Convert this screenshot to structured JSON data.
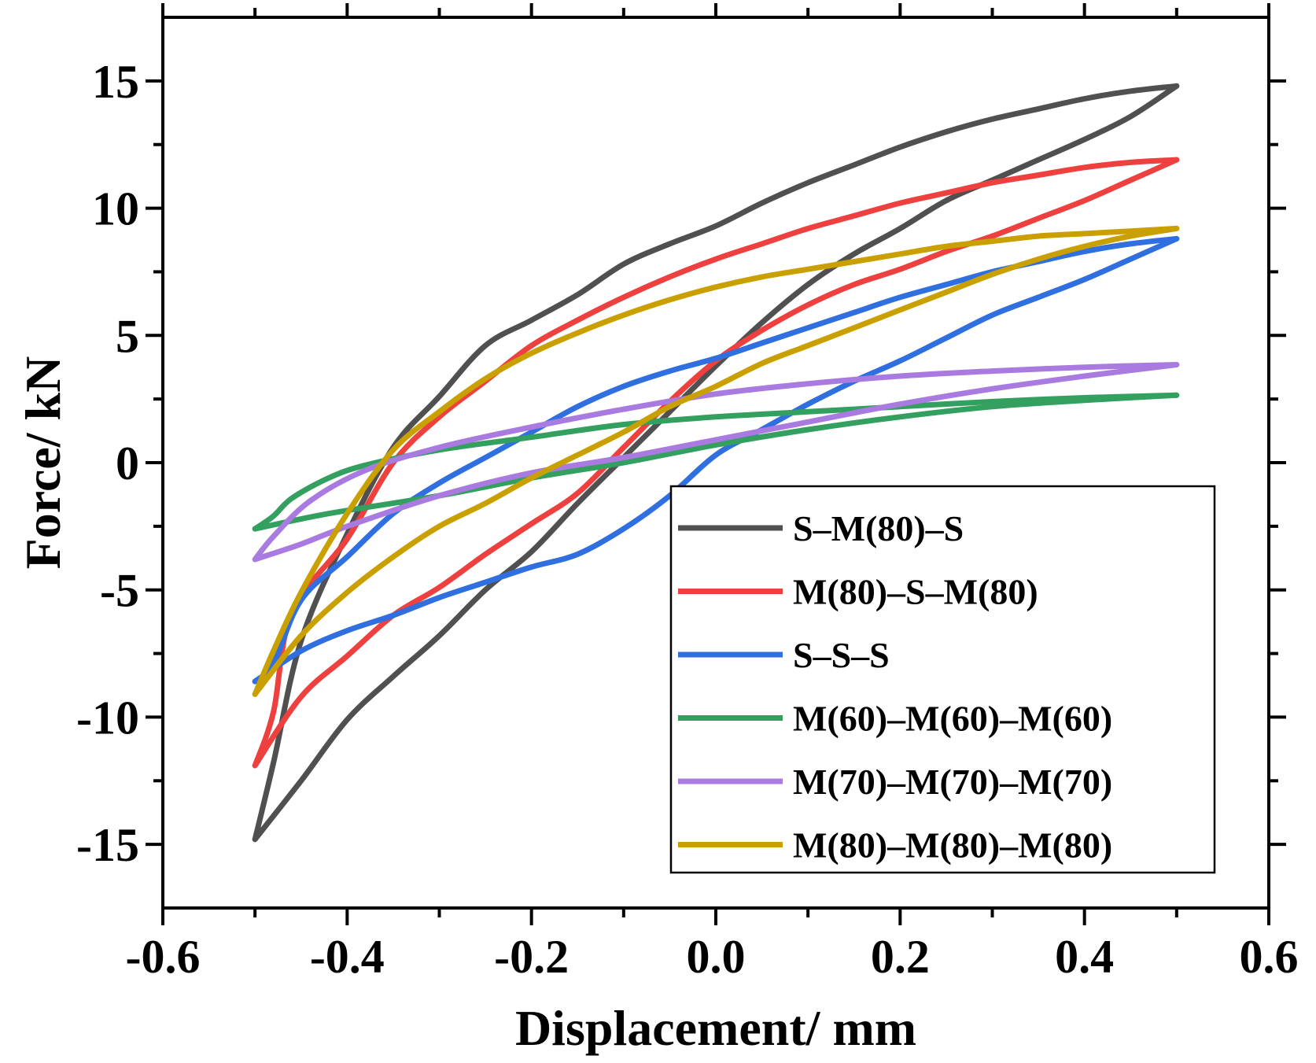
{
  "chart_data": {
    "type": "line",
    "title": "",
    "xlabel": "Displacement/ mm",
    "ylabel": "Force/ kN",
    "xlim": [
      -0.6,
      0.6
    ],
    "ylim": [
      -17.5,
      17.5
    ],
    "x_ticks": [
      -0.6,
      -0.4,
      -0.2,
      0.0,
      0.2,
      0.4,
      0.6
    ],
    "x_tick_labels": [
      "-0.6",
      "-0.4",
      "-0.2",
      "0.0",
      "0.2",
      "0.4",
      "0.6"
    ],
    "y_ticks": [
      15,
      10,
      5,
      0,
      -5,
      -10,
      -15
    ],
    "y_tick_labels": [
      "15",
      "10",
      "5",
      "0",
      "-5",
      "-10",
      "-15"
    ],
    "legend_position": "bottom-right",
    "series": [
      {
        "name": "S–M(80)–S",
        "color": "#505050",
        "upper": [
          [
            -0.5,
            -14.8
          ],
          [
            -0.48,
            -11.8
          ],
          [
            -0.45,
            -7.0
          ],
          [
            -0.4,
            -2.8
          ],
          [
            -0.35,
            0.6
          ],
          [
            -0.3,
            2.6
          ],
          [
            -0.25,
            4.6
          ],
          [
            -0.2,
            5.6
          ],
          [
            -0.15,
            6.6
          ],
          [
            -0.1,
            7.8
          ],
          [
            -0.05,
            8.6
          ],
          [
            0.0,
            9.3
          ],
          [
            0.05,
            10.2
          ],
          [
            0.1,
            11.0
          ],
          [
            0.15,
            11.7
          ],
          [
            0.2,
            12.4
          ],
          [
            0.25,
            13.0
          ],
          [
            0.3,
            13.5
          ],
          [
            0.35,
            13.9
          ],
          [
            0.4,
            14.3
          ],
          [
            0.45,
            14.6
          ],
          [
            0.5,
            14.8
          ]
        ],
        "lower": [
          [
            -0.5,
            -14.8
          ],
          [
            -0.45,
            -12.5
          ],
          [
            -0.4,
            -10.1
          ],
          [
            -0.35,
            -8.4
          ],
          [
            -0.3,
            -6.8
          ],
          [
            -0.25,
            -5.0
          ],
          [
            -0.2,
            -3.5
          ],
          [
            -0.15,
            -1.6
          ],
          [
            -0.1,
            0.2
          ],
          [
            -0.05,
            2.0
          ],
          [
            0.0,
            3.8
          ],
          [
            0.05,
            5.5
          ],
          [
            0.1,
            7.0
          ],
          [
            0.15,
            8.2
          ],
          [
            0.2,
            9.2
          ],
          [
            0.25,
            10.3
          ],
          [
            0.3,
            11.1
          ],
          [
            0.35,
            11.9
          ],
          [
            0.4,
            12.7
          ],
          [
            0.45,
            13.6
          ],
          [
            0.5,
            14.8
          ]
        ]
      },
      {
        "name": "M(80)–S–M(80)",
        "color": "#EF4040",
        "upper": [
          [
            -0.5,
            -11.9
          ],
          [
            -0.48,
            -9.8
          ],
          [
            -0.46,
            -5.9
          ],
          [
            -0.4,
            -3.0
          ],
          [
            -0.35,
            0.0
          ],
          [
            -0.3,
            1.8
          ],
          [
            -0.25,
            3.2
          ],
          [
            -0.2,
            4.6
          ],
          [
            -0.15,
            5.6
          ],
          [
            -0.1,
            6.5
          ],
          [
            -0.05,
            7.3
          ],
          [
            0.0,
            8.0
          ],
          [
            0.05,
            8.6
          ],
          [
            0.1,
            9.2
          ],
          [
            0.15,
            9.7
          ],
          [
            0.2,
            10.2
          ],
          [
            0.25,
            10.6
          ],
          [
            0.3,
            11.0
          ],
          [
            0.35,
            11.3
          ],
          [
            0.4,
            11.6
          ],
          [
            0.45,
            11.8
          ],
          [
            0.5,
            11.9
          ]
        ],
        "lower": [
          [
            -0.5,
            -11.9
          ],
          [
            -0.45,
            -9.2
          ],
          [
            -0.4,
            -7.6
          ],
          [
            -0.35,
            -6.0
          ],
          [
            -0.3,
            -4.9
          ],
          [
            -0.25,
            -3.6
          ],
          [
            -0.2,
            -2.4
          ],
          [
            -0.15,
            -1.2
          ],
          [
            -0.1,
            0.6
          ],
          [
            -0.05,
            2.4
          ],
          [
            0.0,
            4.0
          ],
          [
            0.05,
            5.2
          ],
          [
            0.1,
            6.2
          ],
          [
            0.15,
            7.0
          ],
          [
            0.2,
            7.6
          ],
          [
            0.25,
            8.3
          ],
          [
            0.3,
            8.9
          ],
          [
            0.35,
            9.6
          ],
          [
            0.4,
            10.3
          ],
          [
            0.45,
            11.1
          ],
          [
            0.5,
            11.9
          ]
        ]
      },
      {
        "name": "S–S–S",
        "color": "#2F6FE0",
        "upper": [
          [
            -0.5,
            -8.6
          ],
          [
            -0.48,
            -7.9
          ],
          [
            -0.45,
            -5.4
          ],
          [
            -0.4,
            -3.7
          ],
          [
            -0.35,
            -2.0
          ],
          [
            -0.3,
            -0.8
          ],
          [
            -0.25,
            0.2
          ],
          [
            -0.2,
            1.2
          ],
          [
            -0.15,
            2.2
          ],
          [
            -0.1,
            3.0
          ],
          [
            -0.05,
            3.6
          ],
          [
            0.0,
            4.1
          ],
          [
            0.05,
            4.7
          ],
          [
            0.1,
            5.3
          ],
          [
            0.15,
            5.9
          ],
          [
            0.2,
            6.5
          ],
          [
            0.25,
            7.0
          ],
          [
            0.3,
            7.5
          ],
          [
            0.35,
            7.9
          ],
          [
            0.4,
            8.3
          ],
          [
            0.45,
            8.6
          ],
          [
            0.5,
            8.8
          ]
        ],
        "lower": [
          [
            -0.5,
            -8.6
          ],
          [
            -0.45,
            -7.4
          ],
          [
            -0.4,
            -6.6
          ],
          [
            -0.35,
            -6.0
          ],
          [
            -0.3,
            -5.3
          ],
          [
            -0.25,
            -4.7
          ],
          [
            -0.2,
            -4.1
          ],
          [
            -0.15,
            -3.6
          ],
          [
            -0.1,
            -2.6
          ],
          [
            -0.05,
            -1.3
          ],
          [
            0.0,
            0.3
          ],
          [
            0.05,
            1.3
          ],
          [
            0.1,
            2.3
          ],
          [
            0.15,
            3.2
          ],
          [
            0.2,
            4.0
          ],
          [
            0.25,
            4.9
          ],
          [
            0.3,
            5.8
          ],
          [
            0.35,
            6.5
          ],
          [
            0.4,
            7.2
          ],
          [
            0.45,
            8.0
          ],
          [
            0.5,
            8.8
          ]
        ]
      },
      {
        "name": "M(60)–M(60)–M(60)",
        "color": "#33A060",
        "upper": [
          [
            -0.5,
            -2.6
          ],
          [
            -0.48,
            -2.1
          ],
          [
            -0.46,
            -1.4
          ],
          [
            -0.42,
            -0.6
          ],
          [
            -0.38,
            -0.1
          ],
          [
            -0.3,
            0.5
          ],
          [
            -0.2,
            1.0
          ],
          [
            -0.1,
            1.5
          ],
          [
            0.0,
            1.8
          ],
          [
            0.1,
            2.0
          ],
          [
            0.2,
            2.2
          ],
          [
            0.3,
            2.4
          ],
          [
            0.4,
            2.55
          ],
          [
            0.5,
            2.65
          ]
        ],
        "lower": [
          [
            -0.5,
            -2.6
          ],
          [
            -0.42,
            -2.0
          ],
          [
            -0.3,
            -1.3
          ],
          [
            -0.2,
            -0.6
          ],
          [
            -0.1,
            0.0
          ],
          [
            0.0,
            0.7
          ],
          [
            0.1,
            1.3
          ],
          [
            0.2,
            1.8
          ],
          [
            0.3,
            2.2
          ],
          [
            0.4,
            2.45
          ],
          [
            0.5,
            2.65
          ]
        ]
      },
      {
        "name": "M(70)–M(70)–M(70)",
        "color": "#A97BE0",
        "upper": [
          [
            -0.5,
            -3.8
          ],
          [
            -0.48,
            -2.9
          ],
          [
            -0.44,
            -1.5
          ],
          [
            -0.38,
            -0.3
          ],
          [
            -0.3,
            0.6
          ],
          [
            -0.2,
            1.4
          ],
          [
            -0.1,
            2.1
          ],
          [
            0.0,
            2.7
          ],
          [
            0.1,
            3.1
          ],
          [
            0.2,
            3.4
          ],
          [
            0.3,
            3.6
          ],
          [
            0.4,
            3.75
          ],
          [
            0.5,
            3.85
          ]
        ],
        "lower": [
          [
            -0.5,
            -3.8
          ],
          [
            -0.45,
            -3.2
          ],
          [
            -0.4,
            -2.5
          ],
          [
            -0.3,
            -1.3
          ],
          [
            -0.2,
            -0.4
          ],
          [
            -0.1,
            0.2
          ],
          [
            0.0,
            0.9
          ],
          [
            0.1,
            1.6
          ],
          [
            0.2,
            2.3
          ],
          [
            0.3,
            2.9
          ],
          [
            0.4,
            3.4
          ],
          [
            0.5,
            3.85
          ]
        ]
      },
      {
        "name": "M(80)–M(80)–M(80)",
        "color": "#C9A000",
        "upper": [
          [
            -0.5,
            -9.1
          ],
          [
            -0.48,
            -7.4
          ],
          [
            -0.45,
            -5.1
          ],
          [
            -0.4,
            -2.0
          ],
          [
            -0.35,
            0.5
          ],
          [
            -0.3,
            2.0
          ],
          [
            -0.25,
            3.3
          ],
          [
            -0.2,
            4.3
          ],
          [
            -0.15,
            5.1
          ],
          [
            -0.1,
            5.8
          ],
          [
            -0.05,
            6.4
          ],
          [
            0.0,
            6.9
          ],
          [
            0.05,
            7.3
          ],
          [
            0.1,
            7.6
          ],
          [
            0.15,
            7.9
          ],
          [
            0.2,
            8.2
          ],
          [
            0.25,
            8.5
          ],
          [
            0.3,
            8.7
          ],
          [
            0.35,
            8.9
          ],
          [
            0.4,
            9.0
          ],
          [
            0.45,
            9.1
          ],
          [
            0.5,
            9.2
          ]
        ],
        "lower": [
          [
            -0.5,
            -9.1
          ],
          [
            -0.45,
            -6.8
          ],
          [
            -0.4,
            -5.1
          ],
          [
            -0.35,
            -3.7
          ],
          [
            -0.3,
            -2.5
          ],
          [
            -0.25,
            -1.6
          ],
          [
            -0.2,
            -0.6
          ],
          [
            -0.15,
            0.3
          ],
          [
            -0.1,
            1.2
          ],
          [
            -0.05,
            2.2
          ],
          [
            0.0,
            3.0
          ],
          [
            0.05,
            3.9
          ],
          [
            0.1,
            4.6
          ],
          [
            0.15,
            5.3
          ],
          [
            0.2,
            6.0
          ],
          [
            0.25,
            6.7
          ],
          [
            0.3,
            7.4
          ],
          [
            0.35,
            8.0
          ],
          [
            0.4,
            8.5
          ],
          [
            0.45,
            8.9
          ],
          [
            0.5,
            9.2
          ]
        ]
      }
    ]
  }
}
